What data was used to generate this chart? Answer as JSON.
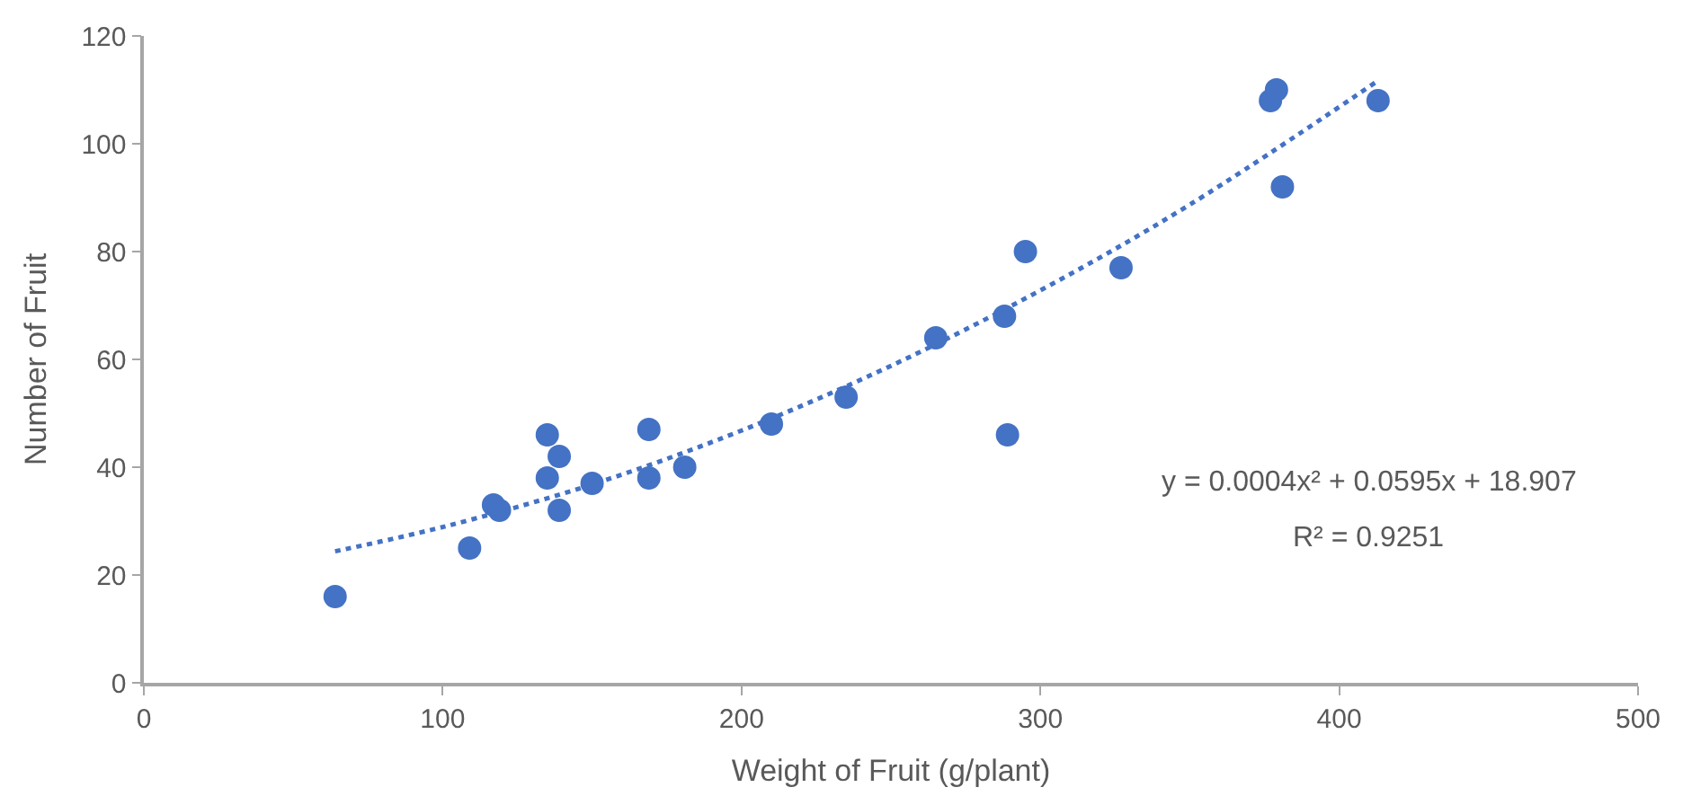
{
  "chart_data": {
    "type": "scatter",
    "xlabel": "Weight of Fruit (g/plant)",
    "ylabel": "Number of Fruit",
    "xlim": [
      0,
      500
    ],
    "xticks": [
      0,
      100,
      200,
      300,
      400,
      500
    ],
    "ylim": [
      0,
      120
    ],
    "yticks": [
      0,
      20,
      40,
      60,
      80,
      100,
      120
    ],
    "marker": "circle",
    "series": [
      {
        "color": "#4472c4",
        "x": [
          64,
          109,
          117,
          119,
          135,
          135,
          139,
          139,
          150,
          169,
          169,
          181,
          210,
          235,
          265,
          288,
          289,
          295,
          327,
          377,
          379,
          381,
          413
        ],
        "values": [
          16,
          25,
          33,
          32,
          46,
          38,
          42,
          32,
          37,
          47,
          38,
          40,
          48,
          53,
          64,
          68,
          46,
          80,
          77,
          108,
          110,
          92,
          108
        ]
      },
      {
        "type": "line",
        "color": "#4472c4",
        "line_style": "dotted",
        "marker": "none",
        "x": [
          64,
          100,
          150,
          200,
          250,
          300,
          350,
          413
        ],
        "values": [
          24.4,
          28.9,
          36.8,
          46.8,
          58.8,
          72.8,
          88.7,
          111.7
        ]
      }
    ],
    "annotations": [
      "y = 0.0004x² + 0.0595x + 18.907",
      "R² = 0.9251"
    ]
  }
}
